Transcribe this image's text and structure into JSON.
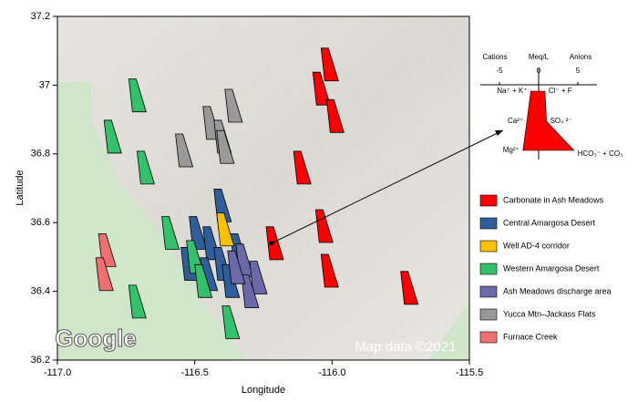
{
  "chart_data": {
    "type": "stiff-map",
    "xlabel": "Longitude",
    "ylabel": "Latitude",
    "xlim": [
      -117.0,
      -115.5
    ],
    "ylim": [
      36.2,
      37.2
    ],
    "xticks": [
      {
        "value": -117.0,
        "label": "-117.0"
      },
      {
        "value": -116.5,
        "label": "-116.5"
      },
      {
        "value": -116.0,
        "label": "-116.0"
      },
      {
        "value": -115.5,
        "label": "-115.5"
      }
    ],
    "yticks": [
      36.2,
      36.4,
      36.6,
      36.8,
      37,
      37.2
    ],
    "attribution": [
      "Google",
      "Map data ©2021"
    ],
    "series": [
      {
        "name": "Carbonate in Ash Meadows",
        "color": "#ff0000",
        "x": [
          -116.02,
          -116.05,
          -116.0,
          -116.12,
          -116.04,
          -116.22,
          -116.02,
          -115.73
        ],
        "y": [
          37.06,
          36.99,
          36.91,
          36.76,
          36.59,
          36.54,
          36.46,
          36.41
        ]
      },
      {
        "name": "Central Amargosa Desert",
        "color": "#2e5f9a",
        "x": [
          -116.41,
          -116.5,
          -116.45,
          -116.53,
          -116.41,
          -116.38,
          -116.46,
          -116.35
        ],
        "y": [
          36.65,
          36.57,
          36.54,
          36.48,
          36.48,
          36.43,
          36.45,
          36.52
        ]
      },
      {
        "name": "Well AD-4 corridor",
        "color": "#ffc000",
        "x": [
          -116.4
        ],
        "y": [
          36.58
        ]
      },
      {
        "name": "Western Amargosa Desert",
        "color": "#33c26a",
        "x": [
          -116.72,
          -116.81,
          -116.69,
          -116.6,
          -116.51,
          -116.72,
          -116.38,
          -116.48
        ],
        "y": [
          36.97,
          36.85,
          36.76,
          36.57,
          36.5,
          36.37,
          36.31,
          36.43
        ]
      },
      {
        "name": "Ash Meadows discharge area",
        "color": "#6b6aa8",
        "x": [
          -116.33,
          -116.28,
          -116.31,
          -116.36
        ],
        "y": [
          36.49,
          36.44,
          36.4,
          36.47
        ]
      },
      {
        "name": "Yucca Mtn–Jackass Flats",
        "color": "#999999",
        "x": [
          -116.37,
          -116.45,
          -116.41,
          -116.55,
          -116.4
        ],
        "y": [
          36.94,
          36.89,
          36.85,
          36.81,
          36.82
        ]
      },
      {
        "name": "Furnace Creek",
        "color": "#f07070",
        "x": [
          -116.83,
          -116.84
        ],
        "y": [
          36.52,
          36.45
        ]
      }
    ],
    "inset": {
      "title": [
        "Cations",
        "Meq/L",
        "Anions"
      ],
      "xlim": [
        -7,
        7
      ],
      "xticks": [
        -5,
        0,
        5
      ],
      "cation_labels": [
        "Na⁺ + K⁺",
        "Ca²⁺",
        "Mg²⁺"
      ],
      "anion_labels": [
        "Cl⁻ + F",
        "SO₄ ²⁻",
        "HCO₃⁻ + CO₃"
      ],
      "cations": [
        -1,
        -1.5,
        -2
      ],
      "anions": [
        0.8,
        1,
        4.5
      ],
      "color": "#ff0000"
    }
  }
}
